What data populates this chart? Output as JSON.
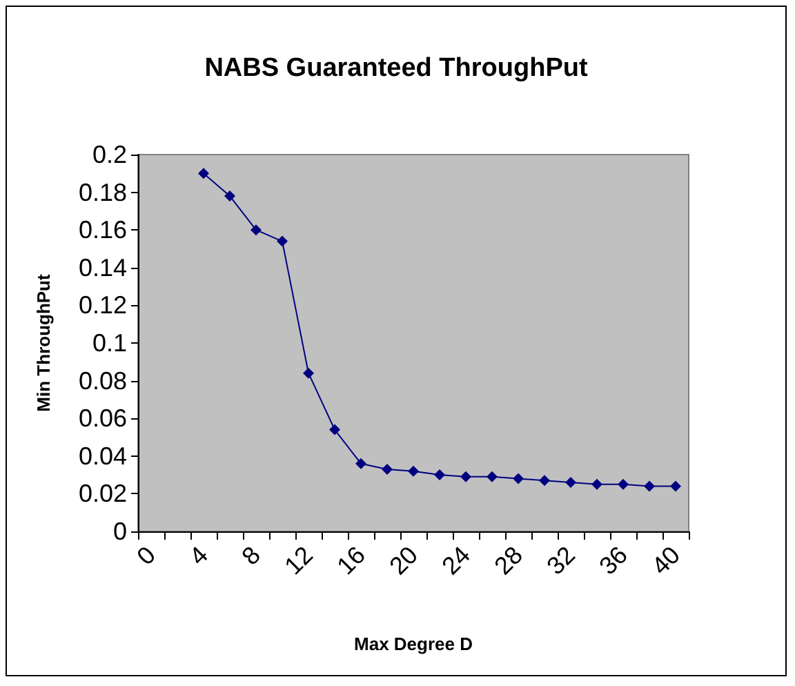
{
  "chart_data": {
    "type": "line",
    "title": "NABS Guaranteed ThroughPut",
    "xlabel": "Max Degree D",
    "ylabel": "Min ThroughPut",
    "categories": [
      "0",
      null,
      "4",
      null,
      "8",
      null,
      "12",
      null,
      "16",
      null,
      "20",
      null,
      "24",
      null,
      "28",
      null,
      "32",
      null,
      "36",
      null,
      "40"
    ],
    "series": [
      {
        "color": "#000080",
        "values": [
          null,
          null,
          0.19,
          0.178,
          0.16,
          0.154,
          0.084,
          0.054,
          0.036,
          0.033,
          0.032,
          0.03,
          0.029,
          0.029,
          0.028,
          0.027,
          0.026,
          0.025,
          0.025,
          0.024,
          0.024
        ]
      }
    ],
    "ylim": [
      0,
      0.2
    ],
    "yticks": [
      0,
      0.02,
      0.04,
      0.06,
      0.08,
      0.1,
      0.12,
      0.14,
      0.16,
      0.18,
      0.2
    ],
    "grid": false,
    "marker": "diamond",
    "line_style": "solid"
  }
}
